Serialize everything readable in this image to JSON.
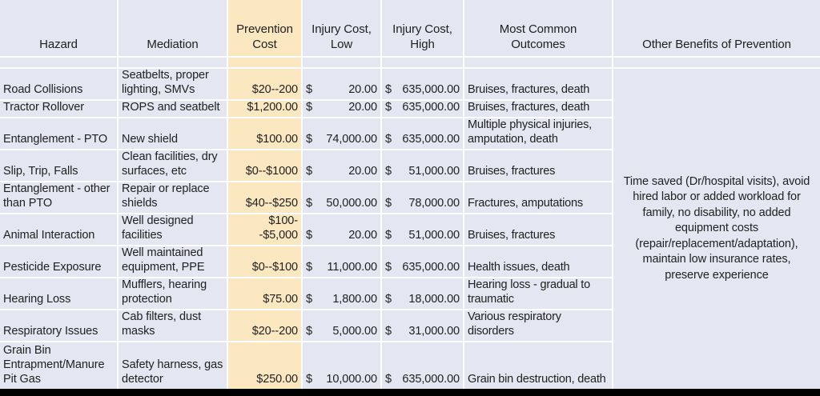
{
  "colors": {
    "row_background": "#E4E6F1",
    "prevention_column_background": "#FBE8C1",
    "gridline": "#FFFFFF",
    "bottom_bar": "#000000",
    "text": "#212121"
  },
  "table": {
    "currency_symbol": "$",
    "columns": [
      "Hazard",
      "Mediation",
      "Prevention\nCost",
      "Injury Cost,\nLow",
      "Injury Cost,\nHigh",
      "Most Common\nOutcomes",
      "Other Benefits of Prevention"
    ],
    "rows": [
      {
        "hazard": "Road Collisions",
        "mediation": "Seatbelts, proper lighting, SMVs",
        "prevention_cost": "$20--200",
        "injury_cost_low": "20.00",
        "injury_cost_high": "635,000.00",
        "outcomes": "Bruises, fractures, death"
      },
      {
        "hazard": "Tractor Rollover",
        "mediation": "ROPS and seatbelt",
        "prevention_cost": "$1,200.00",
        "injury_cost_low": "20.00",
        "injury_cost_high": "635,000.00",
        "outcomes": "Bruises, fractures, death"
      },
      {
        "hazard": "Entanglement - PTO",
        "mediation": "New shield",
        "prevention_cost": "$100.00",
        "injury_cost_low": "74,000.00",
        "injury_cost_high": "635,000.00",
        "outcomes": "Multiple physical injuries, amputation, death"
      },
      {
        "hazard": "Slip, Trip, Falls",
        "mediation": "Clean facilities, dry surfaces, etc",
        "prevention_cost": "$0--$1000",
        "injury_cost_low": "20.00",
        "injury_cost_high": "51,000.00",
        "outcomes": "Bruises, fractures"
      },
      {
        "hazard": "Entanglement - other than PTO",
        "mediation": "Repair or replace shields",
        "prevention_cost": "$40--$250",
        "injury_cost_low": "50,000.00",
        "injury_cost_high": "78,000.00",
        "outcomes": "Fractures, amputations"
      },
      {
        "hazard": "Animal Interaction",
        "mediation": "Well designed facilities",
        "prevention_cost": "$100--$5,000",
        "injury_cost_low": "20.00",
        "injury_cost_high": "51,000.00",
        "outcomes": "Bruises, fractures"
      },
      {
        "hazard": "Pesticide Exposure",
        "mediation": "Well maintained equipment, PPE",
        "prevention_cost": "$0--$100",
        "injury_cost_low": "11,000.00",
        "injury_cost_high": "635,000.00",
        "outcomes": "Health issues, death"
      },
      {
        "hazard": "Hearing Loss",
        "mediation": "Mufflers, hearing protection",
        "prevention_cost": "$75.00",
        "injury_cost_low": "1,800.00",
        "injury_cost_high": "18,000.00",
        "outcomes": "Hearing loss - gradual to traumatic"
      },
      {
        "hazard": "Respiratory Issues",
        "mediation": "Cab filters, dust masks",
        "prevention_cost": "$20--200",
        "injury_cost_low": "5,000.00",
        "injury_cost_high": "31,000.00",
        "outcomes": "Various respiratory disorders"
      },
      {
        "hazard": "Grain Bin Entrapment/Manure Pit Gas",
        "mediation": "Safety harness, gas detector",
        "prevention_cost": "$250.00",
        "injury_cost_low": "10,000.00",
        "injury_cost_high": "635,000.00",
        "outcomes": "Grain bin destruction, death"
      }
    ],
    "other_benefits": "Time saved (Dr/hospital visits), avoid hired labor or added workload for family, no disability, no added equipment costs (repair/replacement/adaptation), maintain low insurance rates, preserve experience"
  }
}
